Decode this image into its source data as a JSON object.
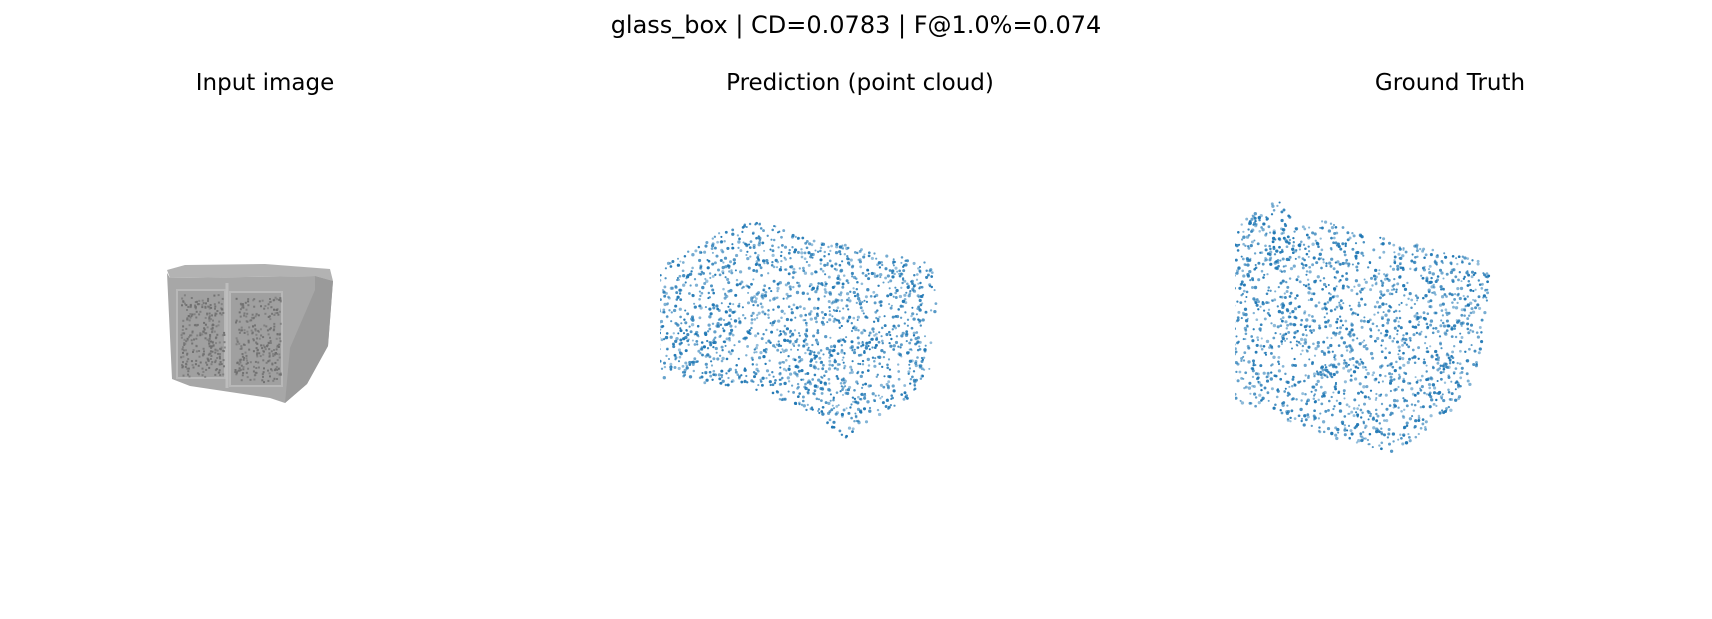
{
  "figure": {
    "title": "glass_box | CD=0.0783 | F@1.0%=0.074"
  },
  "panels": [
    {
      "title": "Input image"
    },
    {
      "title": "Prediction (point cloud)"
    },
    {
      "title": "Ground Truth"
    }
  ],
  "colors": {
    "point": "#1f77b4",
    "box_face": "#a7a7a7",
    "box_side": "#9c9c9c",
    "box_top": "#b3b3b3",
    "box_speckle": "#6e6e6e",
    "background": "#ffffff"
  }
}
